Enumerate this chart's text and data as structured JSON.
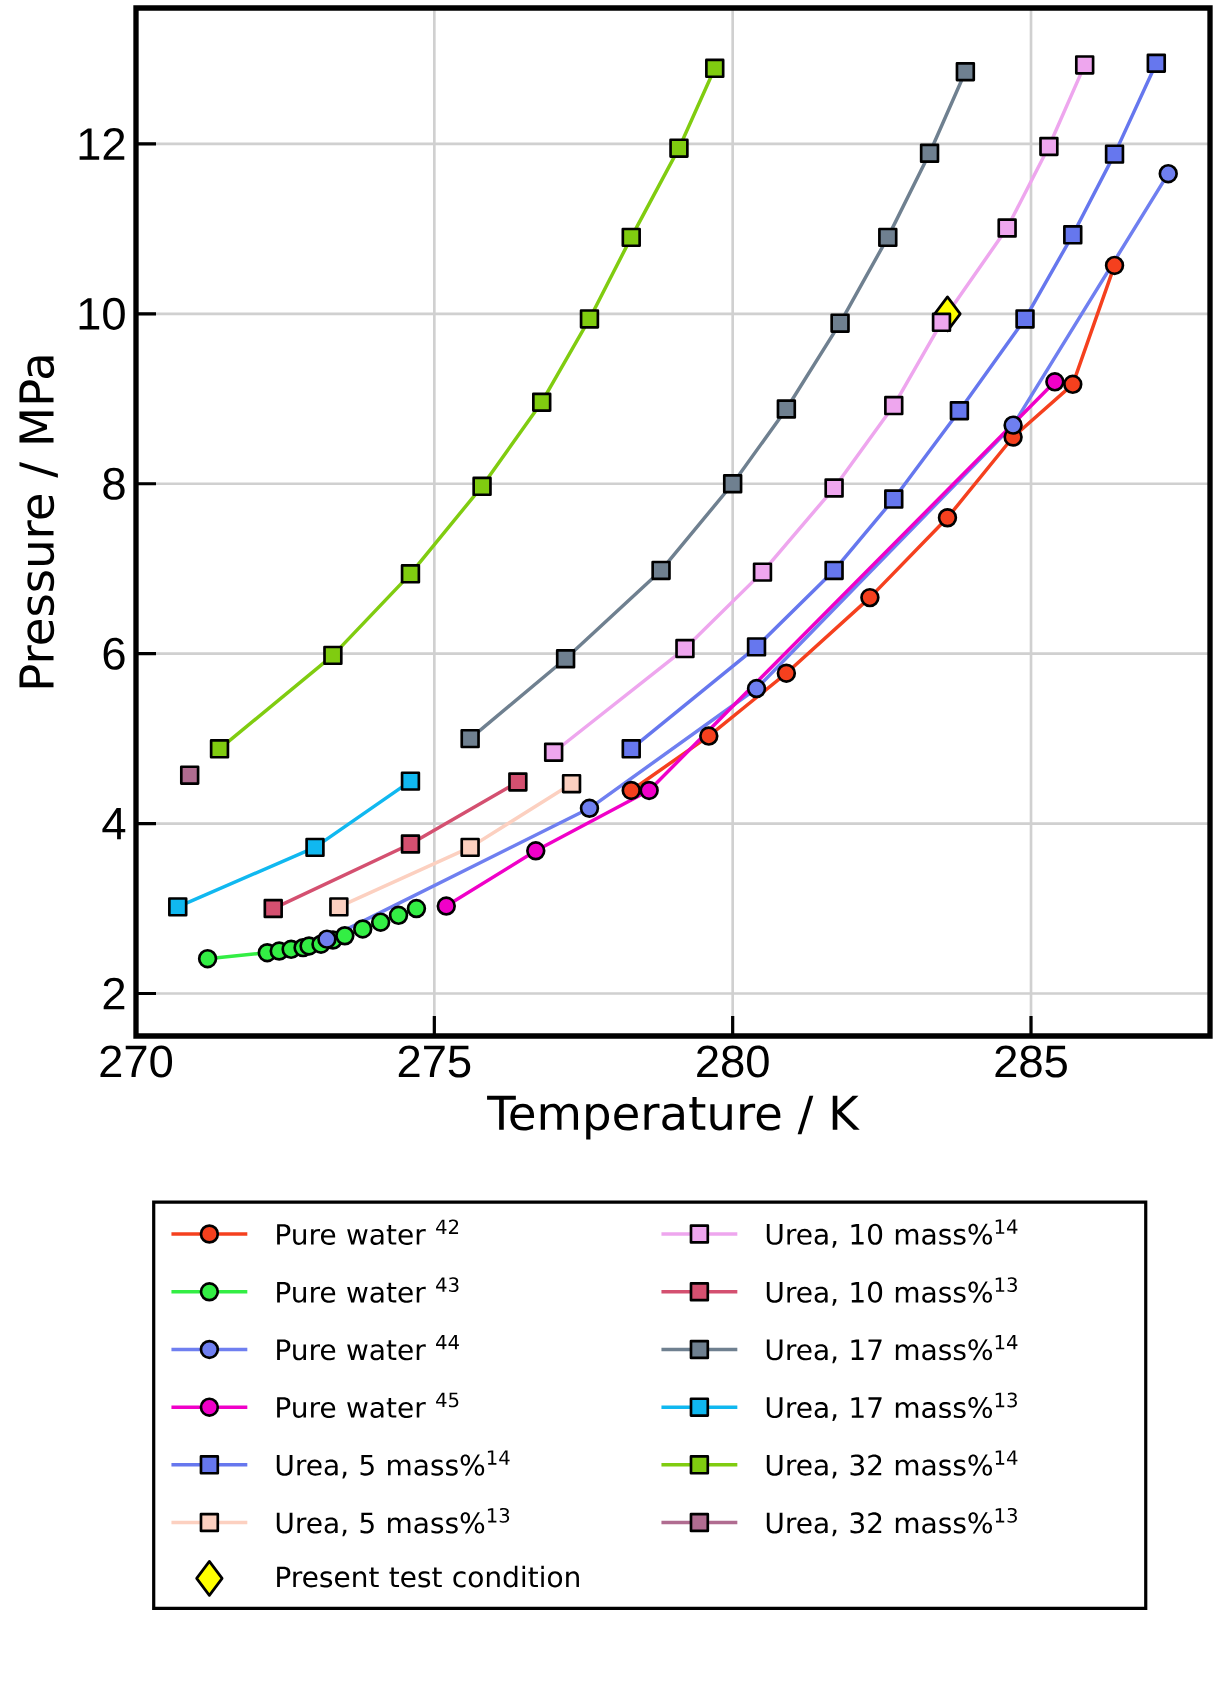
{
  "chart_data": {
    "type": "line",
    "xlabel": "Temperature / K",
    "ylabel": "Pressure / MPa",
    "xlim": [
      270,
      288
    ],
    "ylim": [
      1.5,
      13.6
    ],
    "xticks": [
      270,
      275,
      280,
      285
    ],
    "yticks": [
      2,
      4,
      6,
      8,
      10,
      12
    ],
    "grid": true,
    "legend": "bottom",
    "line_style": "solid",
    "series": [
      {
        "name": "Pure water $^{42}$",
        "color": "#f5401e",
        "marker": "circle",
        "x": [
          278.3,
          279.6,
          280.9,
          282.3,
          283.6,
          284.7,
          285.7,
          286.4
        ],
        "values": [
          4.39,
          5.03,
          5.77,
          6.66,
          7.6,
          8.55,
          9.17,
          10.57
        ]
      },
      {
        "name": "Pure water $^{43}$",
        "color": "#33ee44",
        "marker": "circle",
        "x": [
          271.2,
          272.2,
          272.4,
          272.6,
          272.8,
          272.9,
          273.1,
          273.3,
          273.5,
          273.8,
          274.1,
          274.4,
          274.7
        ],
        "values": [
          2.41,
          2.48,
          2.5,
          2.52,
          2.54,
          2.56,
          2.58,
          2.63,
          2.68,
          2.76,
          2.84,
          2.92,
          3.0
        ]
      },
      {
        "name": "Pure water $^{44}$",
        "color": "#6f7ff0",
        "marker": "circle",
        "x": [
          273.2,
          277.6,
          280.4,
          284.7,
          287.3
        ],
        "values": [
          2.64,
          4.18,
          5.59,
          8.69,
          11.65
        ]
      },
      {
        "name": "Pure water $^{45}$",
        "color": "#f000c8",
        "marker": "circle",
        "x": [
          275.2,
          276.7,
          278.6,
          285.4
        ],
        "values": [
          3.03,
          3.68,
          4.39,
          9.2
        ]
      },
      {
        "name": "Urea, 5 mass%$^{14}$",
        "color": "#6677ee",
        "marker": "square",
        "x": [
          278.3,
          280.4,
          281.7,
          282.7,
          283.8,
          284.9,
          285.7,
          286.4,
          287.1
        ],
        "values": [
          4.88,
          6.08,
          6.98,
          7.82,
          8.86,
          9.94,
          10.93,
          11.88,
          12.95
        ]
      },
      {
        "name": "Urea, 5 mass%$^{13}$",
        "color": "#fcd0c0",
        "marker": "square",
        "x": [
          273.4,
          275.6,
          277.3
        ],
        "values": [
          3.02,
          3.72,
          4.47
        ]
      },
      {
        "name": "Present test condition",
        "type": "scatter",
        "color": "#ffff00",
        "marker": "diamond",
        "x": [
          283.6
        ],
        "values": [
          10.0
        ]
      },
      {
        "name": "Urea, 10 mass%$^{14}$",
        "color": "#eea6ee",
        "marker": "square",
        "x": [
          277.0,
          279.2,
          280.5,
          281.7,
          282.7,
          283.5,
          284.6,
          285.3,
          285.9
        ],
        "values": [
          4.84,
          6.06,
          6.96,
          7.95,
          8.92,
          9.9,
          11.01,
          11.97,
          12.93
        ]
      },
      {
        "name": "Urea, 10 mass%$^{13}$",
        "color": "#d45070",
        "marker": "square",
        "x": [
          272.3,
          274.6,
          276.4
        ],
        "values": [
          3.0,
          3.76,
          4.49
        ]
      },
      {
        "name": "Urea, 17 mass%$^{14}$",
        "color": "#6f8090",
        "marker": "square",
        "x": [
          275.6,
          277.2,
          278.8,
          280.0,
          280.9,
          281.8,
          282.6,
          283.3,
          283.9
        ],
        "values": [
          5.0,
          5.94,
          6.98,
          8.0,
          8.88,
          9.89,
          10.9,
          11.89,
          12.85
        ]
      },
      {
        "name": "Urea, 17 mass%$^{13}$",
        "color": "#10b8f0",
        "marker": "square",
        "x": [
          270.7,
          273.0,
          274.6
        ],
        "values": [
          3.02,
          3.72,
          4.5
        ]
      },
      {
        "name": "Urea, 32 mass%$^{14}$",
        "color": "#80cc10",
        "marker": "square",
        "x": [
          271.4,
          273.3,
          274.6,
          275.8,
          276.8,
          277.6,
          278.3,
          279.1,
          279.7
        ],
        "values": [
          4.88,
          5.98,
          6.94,
          7.97,
          8.96,
          9.94,
          10.9,
          11.95,
          12.89
        ]
      },
      {
        "name": "Urea, 32 mass%$^{13}$",
        "color": "#b06c90",
        "marker": "square",
        "x": [
          270.9
        ],
        "values": [
          4.57
        ]
      }
    ]
  }
}
